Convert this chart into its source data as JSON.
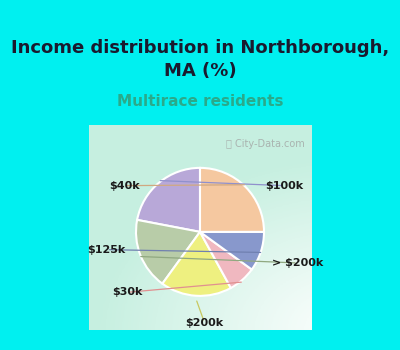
{
  "title": "Income distribution in Northborough,\nMA (%)",
  "subtitle": "Multirace residents",
  "watermark": "ⓘ City-Data.com",
  "slices": [
    {
      "label": "$100k",
      "value": 22,
      "color": "#b8a8d8"
    },
    {
      "label": "> $200k",
      "value": 18,
      "color": "#b8cca8"
    },
    {
      "label": "$200k",
      "value": 18,
      "color": "#eef080"
    },
    {
      "label": "$30k",
      "value": 7,
      "color": "#f0b8c0"
    },
    {
      "label": "$125k",
      "value": 10,
      "color": "#8898cc"
    },
    {
      "label": "$40k",
      "value": 25,
      "color": "#f5c8a0"
    }
  ],
  "start_angle": 90,
  "bg_color": "#00f0f0",
  "chart_bg_topleft": "#c8e8d8",
  "chart_bg_center": "#f0f8f0",
  "title_fontsize": 13,
  "title_color": "#1a1a2e",
  "subtitle_color": "#2aaa8a",
  "subtitle_fontsize": 11,
  "border_color": "#00f0f0",
  "border_width": 8,
  "label_fontsize": 8,
  "label_color": "#1a1a1a",
  "line_colors": {
    "$100k": "#9090cc",
    "> $200k": "#90a880",
    "$200k": "#c8c860",
    "$30k": "#e09090",
    "$125k": "#7080b0",
    "$40k": "#d0a880"
  }
}
